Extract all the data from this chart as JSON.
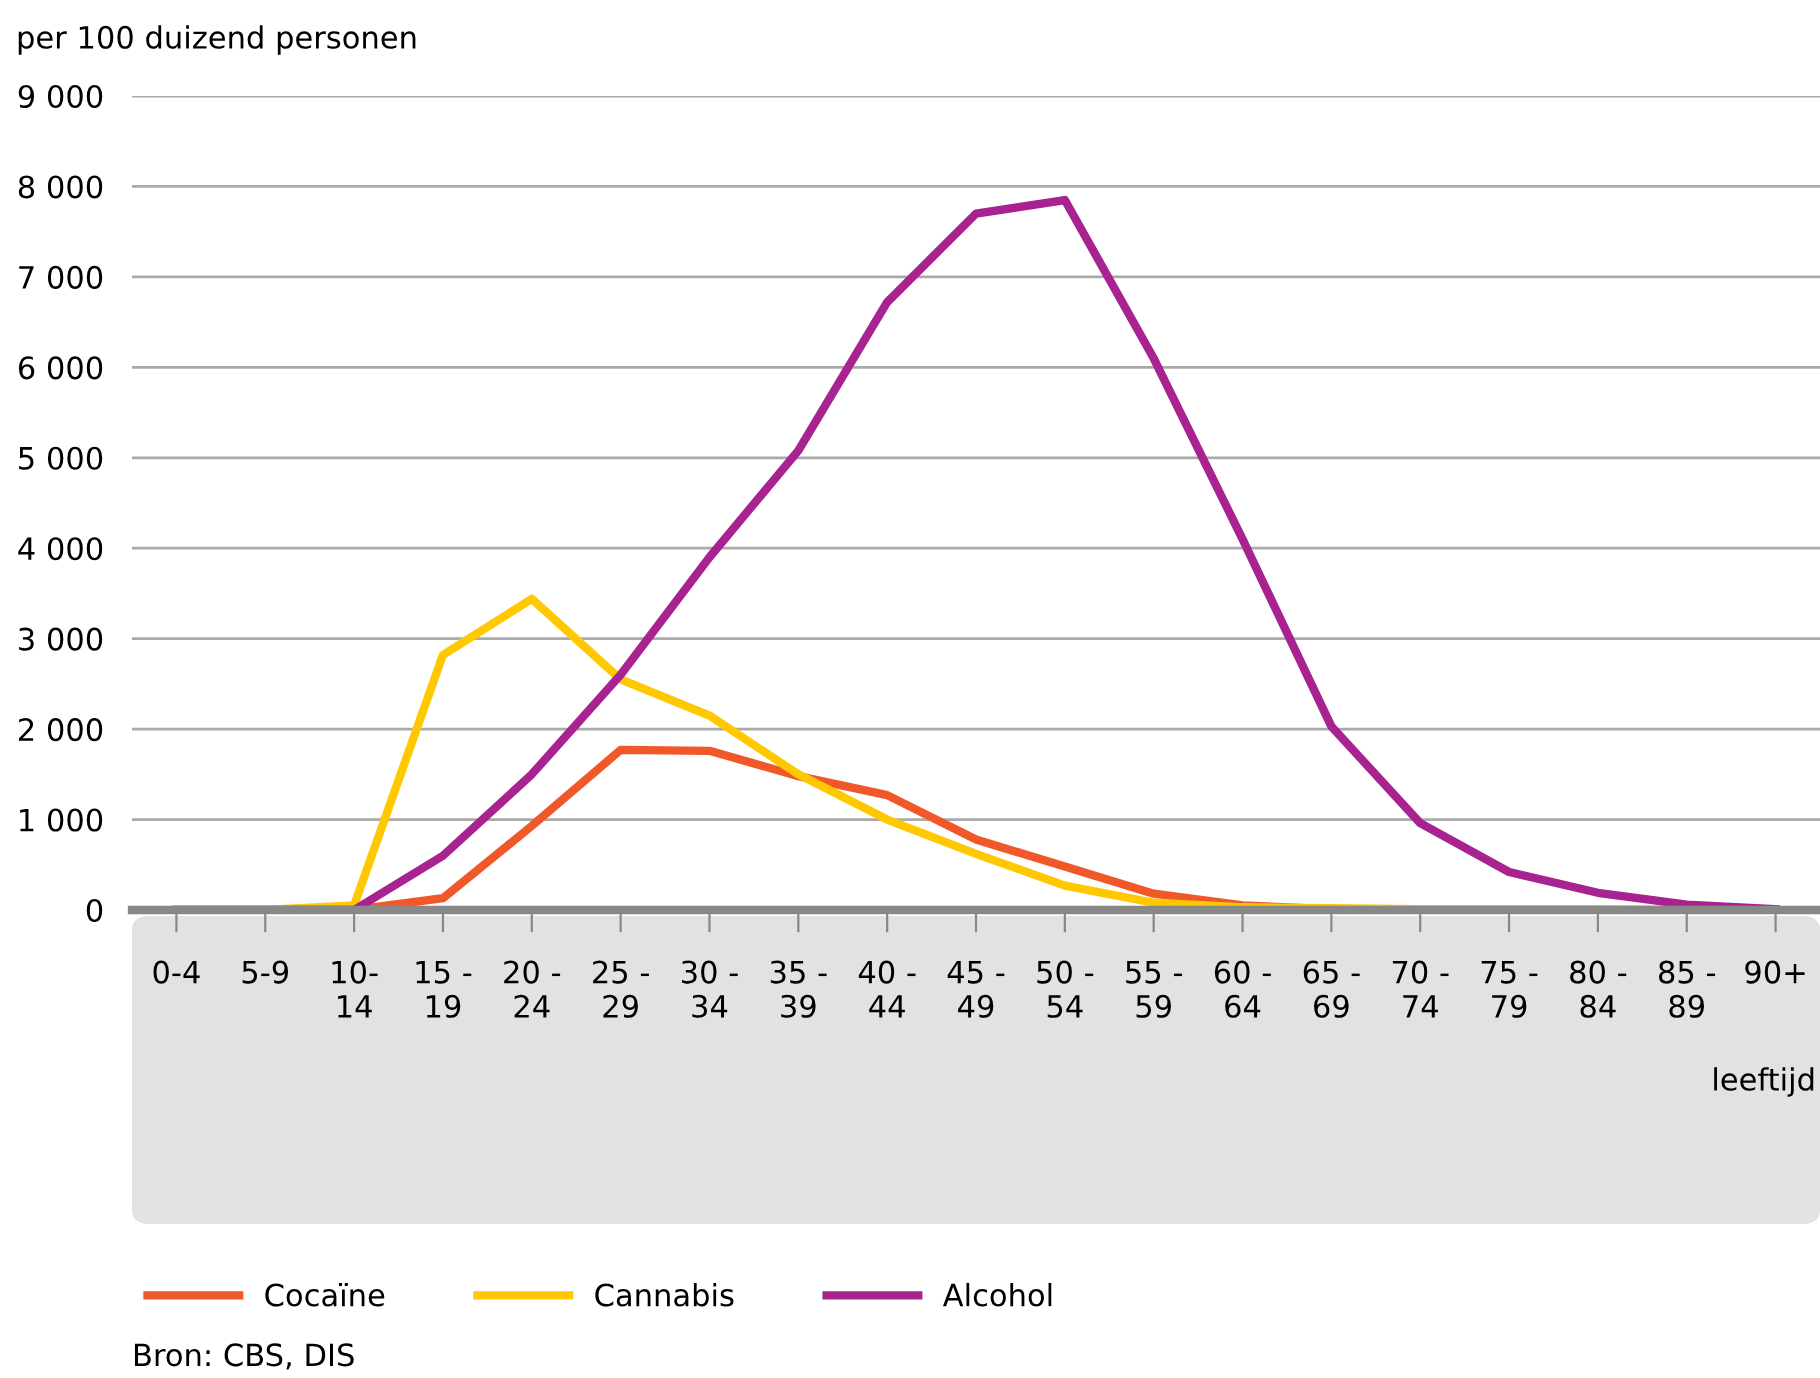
{
  "chart_data": {
    "type": "line",
    "ylabel": "per 100 duizend personen",
    "xlabel": "leeftijd",
    "categories": [
      "0-4",
      "5-9",
      "10-\n14",
      "15 -\n19",
      "20 -\n24",
      "25 -\n29",
      "30 -\n34",
      "35 -\n39",
      "40 -\n44",
      "45 -\n49",
      "50 -\n54",
      "55 -\n59",
      "60 -\n64",
      "65 -\n69",
      "70 -\n74",
      "75 -\n79",
      "80 -\n84",
      "85 -\n89",
      "90+"
    ],
    "series": [
      {
        "name": "Cocaïne",
        "color": "#f0582a",
        "values": [
          0,
          0,
          0,
          130,
          930,
          1770,
          1760,
          1480,
          1270,
          780,
          480,
          180,
          50,
          10,
          0,
          null,
          null,
          null,
          null
        ]
      },
      {
        "name": "Cannabis",
        "color": "#ffc800",
        "values": [
          0,
          0,
          50,
          2820,
          3440,
          2550,
          2150,
          1500,
          1000,
          620,
          270,
          80,
          30,
          20,
          10,
          10,
          10,
          0,
          0
        ]
      },
      {
        "name": "Alcohol",
        "color": "#a8238f",
        "values": [
          0,
          0,
          0,
          600,
          1500,
          2600,
          3900,
          5080,
          6720,
          7700,
          7850,
          6100,
          4100,
          2030,
          960,
          420,
          190,
          60,
          10
        ]
      }
    ],
    "ylim": [
      0,
      9000
    ],
    "yticks": [
      0,
      {
        "value": 1000,
        "label": "1 000"
      },
      {
        "value": 2000,
        "label": "2 000"
      },
      {
        "value": 3000,
        "label": "3 000"
      },
      {
        "value": 4000,
        "label": "4 000"
      },
      {
        "value": 5000,
        "label": "5 000"
      },
      {
        "value": 6000,
        "label": "6 000"
      },
      {
        "value": 7000,
        "label": "7 000"
      },
      {
        "value": 8000,
        "label": "8 000"
      },
      {
        "value": 9000,
        "label": "9 000"
      }
    ],
    "grid": "y",
    "legend": "bottom",
    "marker": "none",
    "line_style": "solid",
    "annotations": [
      "Bron: CBS, DIS"
    ]
  }
}
